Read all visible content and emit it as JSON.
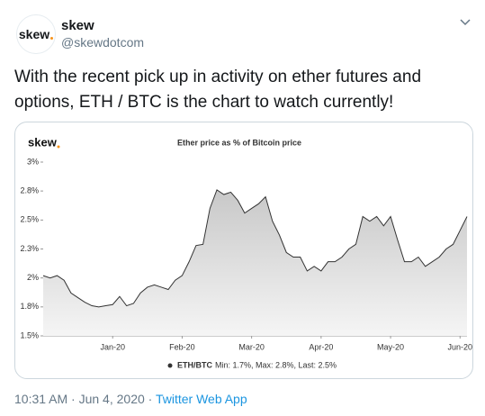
{
  "tweet": {
    "avatar_text": "skew",
    "name": "skew",
    "handle": "@skewdotcom",
    "text": "With the recent pick up in activity on ether futures and options, ETH / BTC is the chart to watch currently!",
    "timestamp": "10:31 AM · Jun 4, 2020 · ",
    "source": "Twitter Web App"
  },
  "chart_data": {
    "type": "area",
    "logo": "skew",
    "title": "Ether price as % of Bitcoin price",
    "legend_note": "Min: 1.7%, Max: 2.8%, Last: 2.5%",
    "categories": [
      null,
      null,
      null,
      null,
      null,
      null,
      null,
      null,
      null,
      null,
      "Jan-20",
      null,
      null,
      null,
      null,
      null,
      null,
      null,
      null,
      null,
      "Feb-20",
      null,
      null,
      null,
      null,
      null,
      null,
      null,
      null,
      null,
      "Mar-20",
      null,
      null,
      null,
      null,
      null,
      null,
      null,
      null,
      null,
      "Apr-20",
      null,
      null,
      null,
      null,
      null,
      null,
      null,
      null,
      null,
      "May-20",
      null,
      null,
      null,
      null,
      null,
      null,
      null,
      null,
      null,
      "Jun-20",
      null
    ],
    "series": [
      {
        "name": "ETH/BTC",
        "color": "#333333",
        "values": [
          2.02,
          2.0,
          2.02,
          1.98,
          1.87,
          1.83,
          1.79,
          1.76,
          1.75,
          1.76,
          1.77,
          1.84,
          1.76,
          1.78,
          1.87,
          1.92,
          1.94,
          1.92,
          1.9,
          1.98,
          2.02,
          2.14,
          2.28,
          2.29,
          2.6,
          2.76,
          2.72,
          2.74,
          2.67,
          2.56,
          2.6,
          2.64,
          2.7,
          2.49,
          2.37,
          2.22,
          2.18,
          2.18,
          2.06,
          2.1,
          2.06,
          2.14,
          2.14,
          2.18,
          2.25,
          2.29,
          2.53,
          2.49,
          2.53,
          2.45,
          2.53,
          2.33,
          2.14,
          2.14,
          2.18,
          2.1,
          2.14,
          2.18,
          2.25,
          2.29,
          2.41,
          2.53
        ]
      }
    ],
    "ylim": [
      1.5,
      3
    ],
    "yticks": [
      {
        "value": 1.5,
        "label": "1.5%"
      },
      {
        "value": 1.75,
        "label": "1.8%"
      },
      {
        "value": 2,
        "label": "2%"
      },
      {
        "value": 2.25,
        "label": "2.3%"
      },
      {
        "value": 2.5,
        "label": "2.5%"
      },
      {
        "value": 2.75,
        "label": "2.8%"
      },
      {
        "value": 3,
        "label": "3%"
      }
    ],
    "grid": false
  }
}
